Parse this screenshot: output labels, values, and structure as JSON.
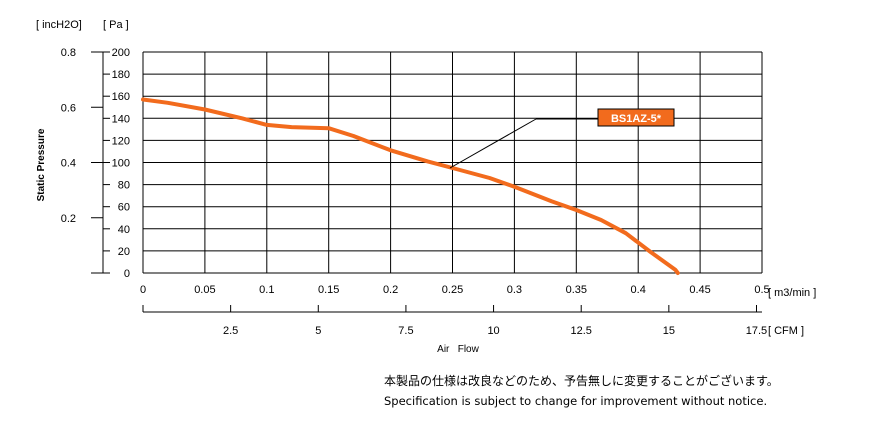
{
  "chart_data": {
    "type": "line",
    "units": {
      "y_left_inch": "[ incH2O]",
      "y_left_pa": "[ Pa ]",
      "x_top": "[ m3/min ]",
      "x_bottom": "[ CFM ]"
    },
    "ylabel": "Static Pressure",
    "xlabel": "Air   Flow",
    "ylim": [
      0,
      200
    ],
    "xlim": [
      0,
      0.5
    ],
    "grid": true,
    "y_ticks_pa": [
      "0",
      "20",
      "40",
      "60",
      "80",
      "100",
      "120",
      "140",
      "160",
      "180",
      "200"
    ],
    "y_ticks_inch": [
      "0.2",
      "0.4",
      "0.6",
      "0.8"
    ],
    "x_ticks_m3": [
      "0",
      "0.05",
      "0.1",
      "0.15",
      "0.2",
      "0.25",
      "0.3",
      "0.35",
      "0.4",
      "0.45",
      "0.5"
    ],
    "x_ticks_cfm": [
      "2.5",
      "5",
      "7.5",
      "10",
      "12.5",
      "15",
      "17.5"
    ],
    "series": [
      {
        "name": "BS1AZ-5*",
        "color": "#f26b1d",
        "x": [
          0,
          0.02,
          0.05,
          0.08,
          0.1,
          0.12,
          0.15,
          0.17,
          0.2,
          0.23,
          0.25,
          0.28,
          0.3,
          0.33,
          0.35,
          0.37,
          0.39,
          0.41,
          0.43,
          0.432
        ],
        "y": [
          157,
          154,
          148,
          140,
          134,
          132,
          131,
          124,
          111,
          101,
          95,
          86,
          78,
          65,
          57,
          48,
          36,
          19,
          3,
          0
        ]
      }
    ],
    "annotation": {
      "label": "BS1AZ-5*",
      "color": "#f26b1d"
    }
  },
  "notes": {
    "jp": "本製品の仕様は改良などのため、予告無しに変更することがございます。",
    "en": "Specification is subject to change for improvement without notice."
  }
}
